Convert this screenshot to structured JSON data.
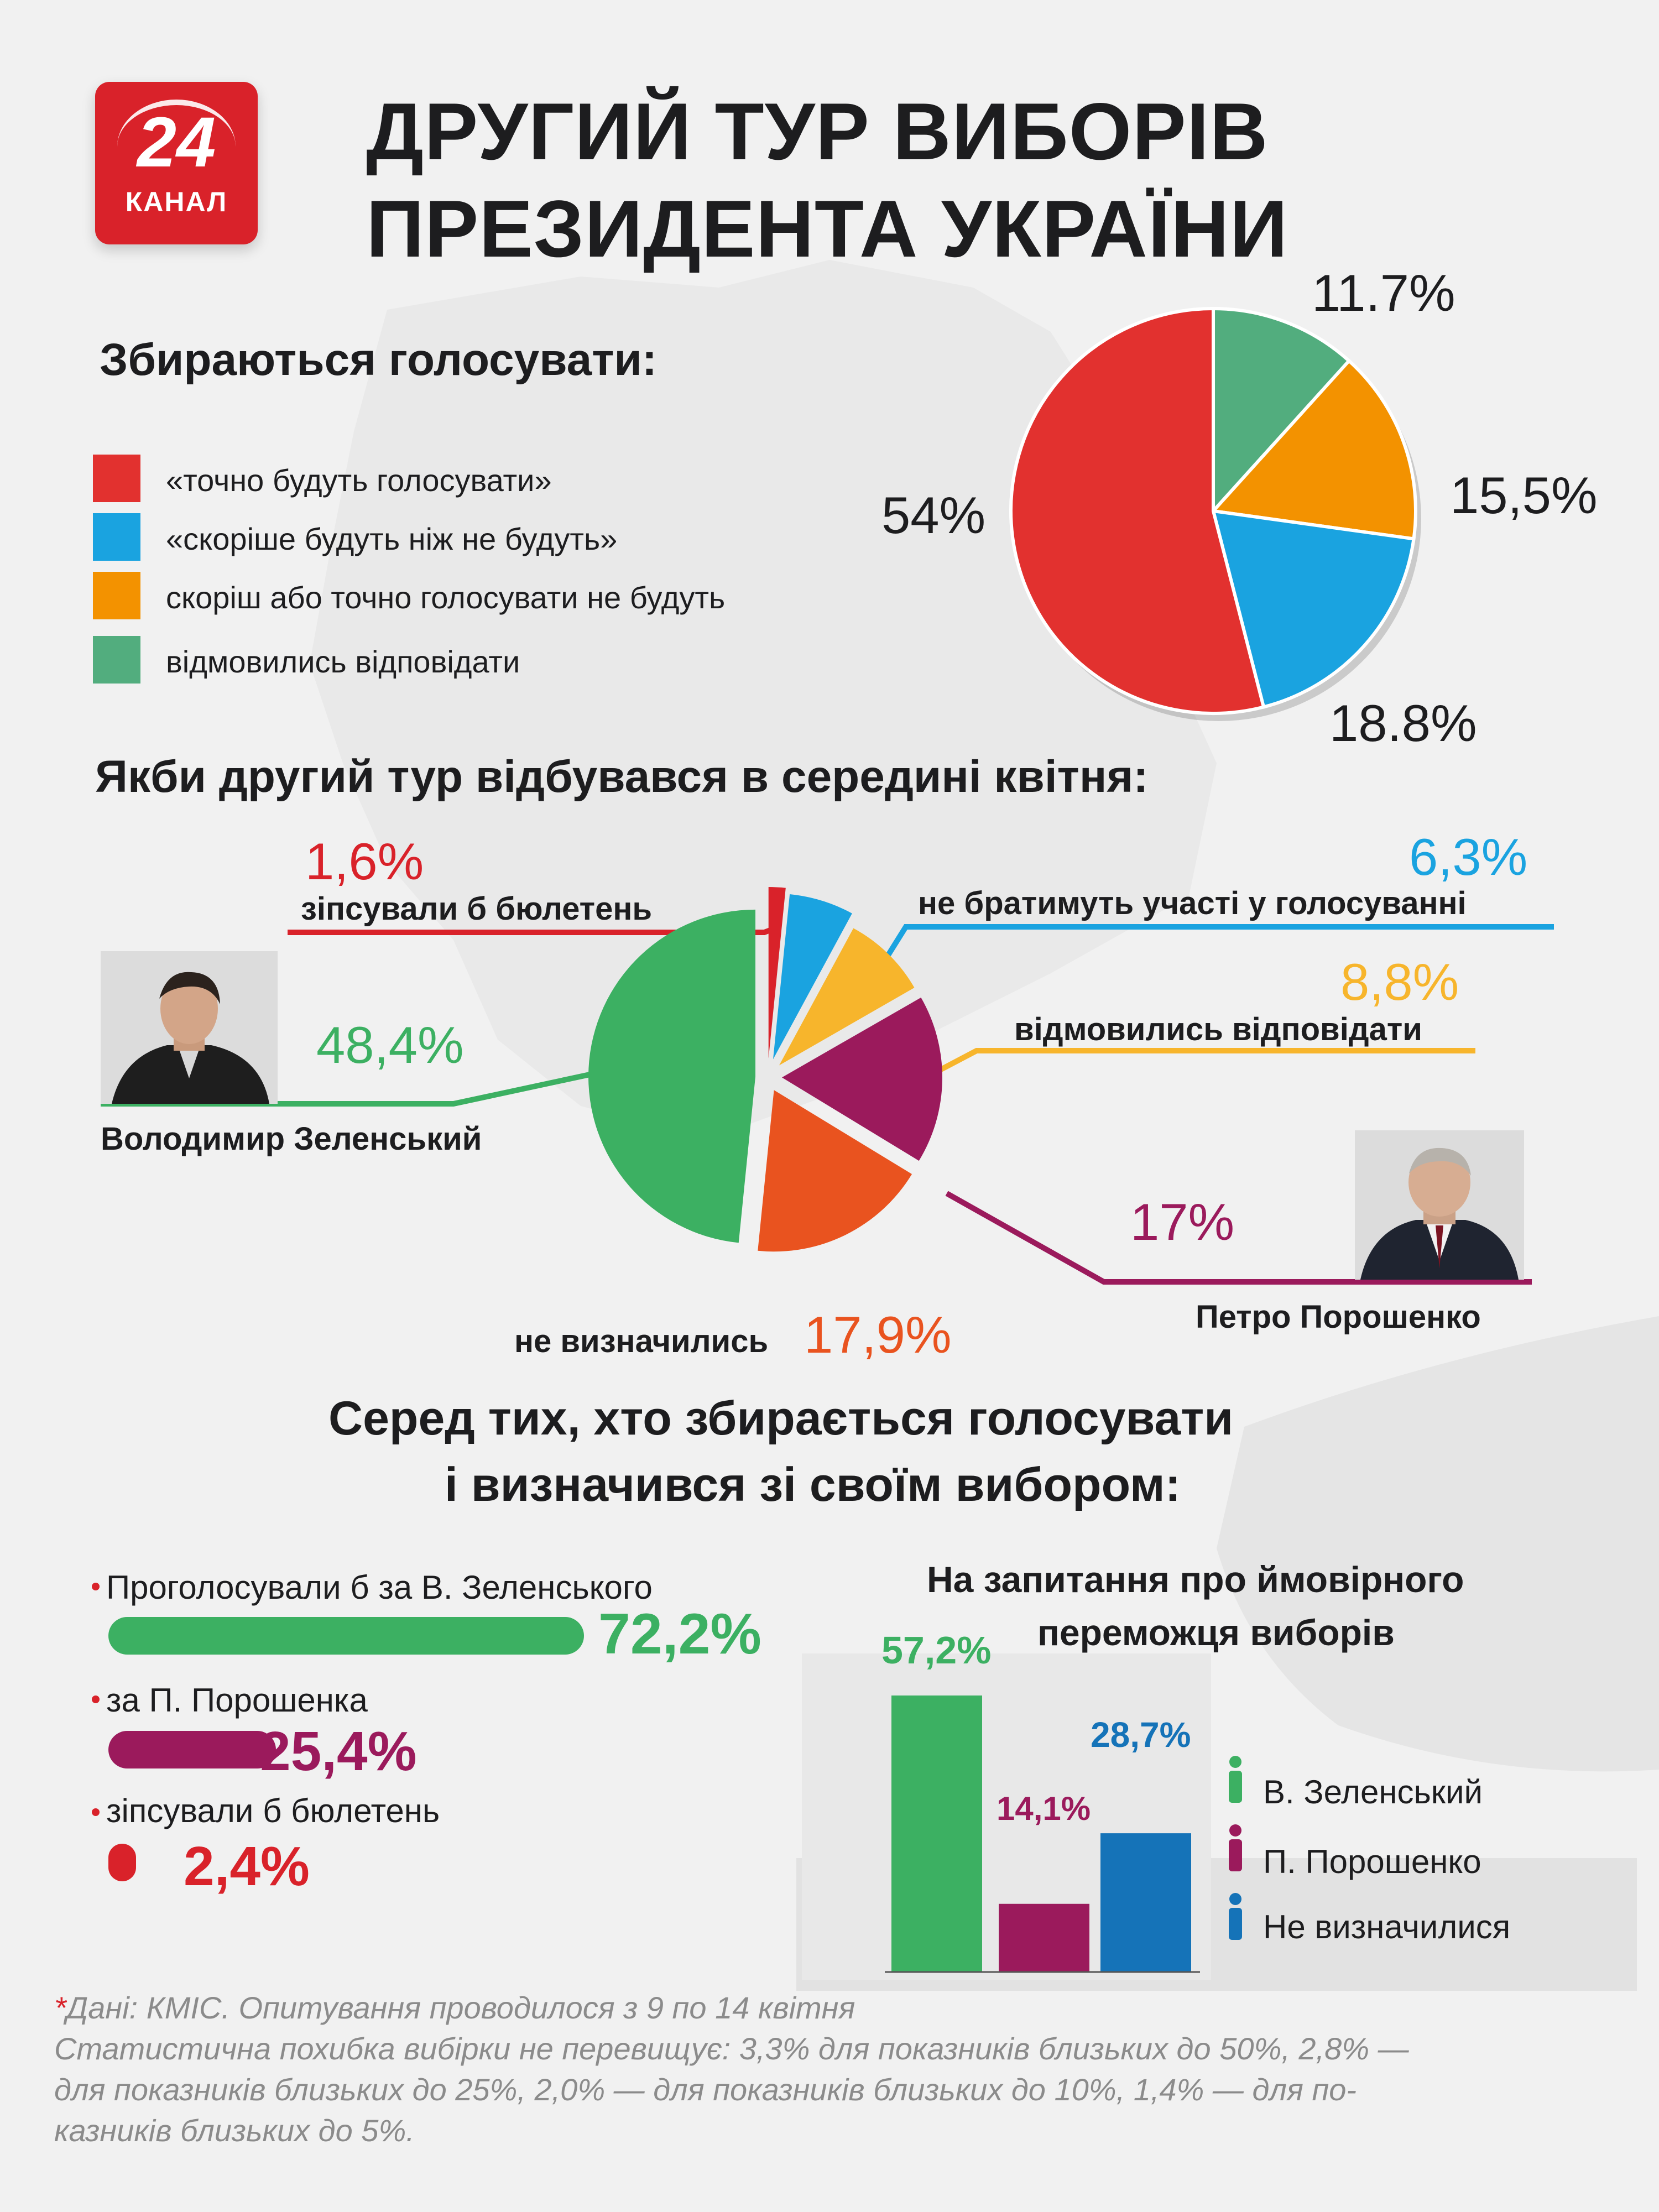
{
  "logo": {
    "number": "24",
    "word": "КАНАЛ"
  },
  "title": {
    "line1": "ДРУГИЙ ТУР ВИБОРІВ",
    "line2": "ПРЕЗИДЕНТА УКРАЇНИ"
  },
  "colors": {
    "red": "#e2312f",
    "blue": "#1aa3e0",
    "orange": "#f39200",
    "teal": "#52ad7e",
    "crimson": "#d9222a",
    "green": "#3cb062",
    "purple": "#9b1a5c",
    "deeporange": "#e9531f",
    "yellow": "#f7b52c",
    "darkblue": "#1573b8"
  },
  "section1": {
    "heading": "Збираються голосувати:"
  },
  "section2": {
    "heading": "Якби другий тур відбувався в середині квітня:"
  },
  "section3": {
    "heading_line1": "Серед тих, хто збирається голосувати",
    "heading_line2": "і визначився зі своїм вибором:"
  },
  "section4": {
    "heading_line1": "На запитання про ймовірного",
    "heading_line2": "переможця виборів"
  },
  "candidates": {
    "zelensky": "Володимир Зеленський",
    "poroshenko": "Петро Порошенко"
  },
  "chart_data": [
    {
      "type": "pie",
      "title": "Збираються голосувати:",
      "categories": [
        "«точно будуть голосувати»",
        "«скоріше будуть ніж не будуть»",
        "скоріш або точно голосувати не будуть",
        "відмовились відповідати"
      ],
      "values": [
        54,
        18.8,
        15.5,
        11.7
      ],
      "labels": [
        "54%",
        "18.8%",
        "15,5%",
        "11.7%"
      ],
      "colors": [
        "#e2312f",
        "#1aa3e0",
        "#f39200",
        "#52ad7e"
      ],
      "legend": "left"
    },
    {
      "type": "pie",
      "title": "Якби другий тур відбувався в середині квітня:",
      "categories": [
        "зіпсували б бюлетень",
        "не братимуть участі у голосуванні",
        "відмовились відповідати",
        "Петро Порошенко",
        "не визначились",
        "Володимир Зеленський"
      ],
      "values": [
        1.6,
        6.3,
        8.8,
        17,
        17.9,
        48.4
      ],
      "labels": [
        "1,6%",
        "6,3%",
        "8,8%",
        "17%",
        "17,9%",
        "48,4%"
      ],
      "colors": [
        "#d9222a",
        "#1aa3e0",
        "#f7b52c",
        "#9b1a5c",
        "#e9531f",
        "#3cb062"
      ]
    },
    {
      "type": "bar",
      "orientation": "horizontal",
      "title": "Серед тих, хто збирається голосувати і визначився зі своїм вибором:",
      "categories": [
        "Проголосували б за В. Зеленського",
        "за П. Порошенка",
        "зіпсували б бюлетень"
      ],
      "values": [
        72.2,
        25.4,
        2.4
      ],
      "labels": [
        "72,2%",
        "25,4%",
        "2,4%"
      ],
      "colors": [
        "#3cb062",
        "#9b1a5c",
        "#d9222a"
      ]
    },
    {
      "type": "bar",
      "title": "На запитання про ймовірного переможця виборів",
      "categories": [
        "В. Зеленський",
        "П. Порошенко",
        "Не визначилися"
      ],
      "values": [
        57.2,
        14.1,
        28.7
      ],
      "labels": [
        "57,2%",
        "14,1%",
        "28,7%"
      ],
      "colors": [
        "#3cb062",
        "#9b1a5c",
        "#1573b8"
      ],
      "legend": "right"
    }
  ],
  "footnote": {
    "star": "*",
    "line1": "Дані: КМІС. Опитування проводилося з 9 по 14 квітня",
    "line2": "Статистична похибка вибірки не перевищує: 3,3% для показників близьких до 50%, 2,8% —",
    "line3": "для показників близьких до 25%, 2,0% — для показників близьких до 10%, 1,4% — для по-",
    "line4": "казників близьких до 5%."
  }
}
